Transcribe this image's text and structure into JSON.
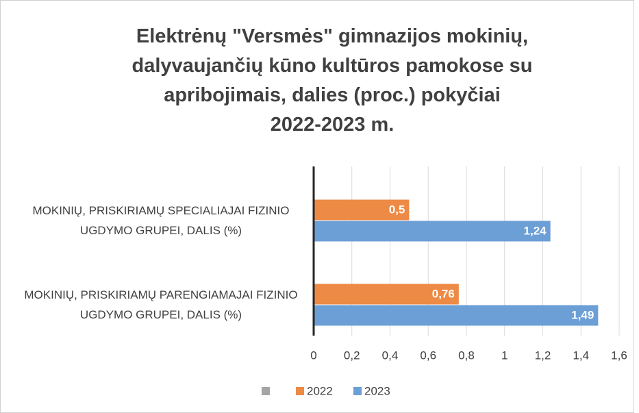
{
  "chart_data": {
    "type": "hbar",
    "title": "Elektrėnų \"Versmės\" gimnazijos mokinių,\ndalyvaujančių kūno kultūros pamokose su\napribojimais, dalies (proc.) pokyčiai\n2022-2023 m.",
    "categories": [
      "MOKINIŲ, PRISKIRIAMŲ SPECIALIAJAI FIZINIO UGDYMO GRUPEI, DALIS (%)",
      "MOKINIŲ, PRISKIRIAMŲ PARENGIAMAJAI FIZINIO UGDYMO GRUPEI, DALIS (%)"
    ],
    "series": [
      {
        "name": "2022",
        "color": "#ed8a45",
        "values": [
          0.5,
          0.76
        ],
        "value_labels": [
          "0,5",
          "0,76"
        ]
      },
      {
        "name": "2023",
        "color": "#6c9fd6",
        "values": [
          1.24,
          1.49
        ],
        "value_labels": [
          "1,24",
          "1,49"
        ]
      }
    ],
    "xlim": [
      0,
      1.6
    ],
    "xticks": [
      0,
      {
        "value": 0.2,
        "label": "0,2"
      },
      {
        "value": 0.4,
        "label": "0,4"
      },
      {
        "value": 0.6,
        "label": "0,6"
      },
      {
        "value": 0.8,
        "label": "0,8"
      },
      1,
      {
        "value": 1.2,
        "label": "1,2"
      },
      {
        "value": 1.4,
        "label": "1,4"
      },
      {
        "value": 1.6,
        "label": "1,6"
      }
    ],
    "grid": true,
    "legend": "bottom"
  }
}
